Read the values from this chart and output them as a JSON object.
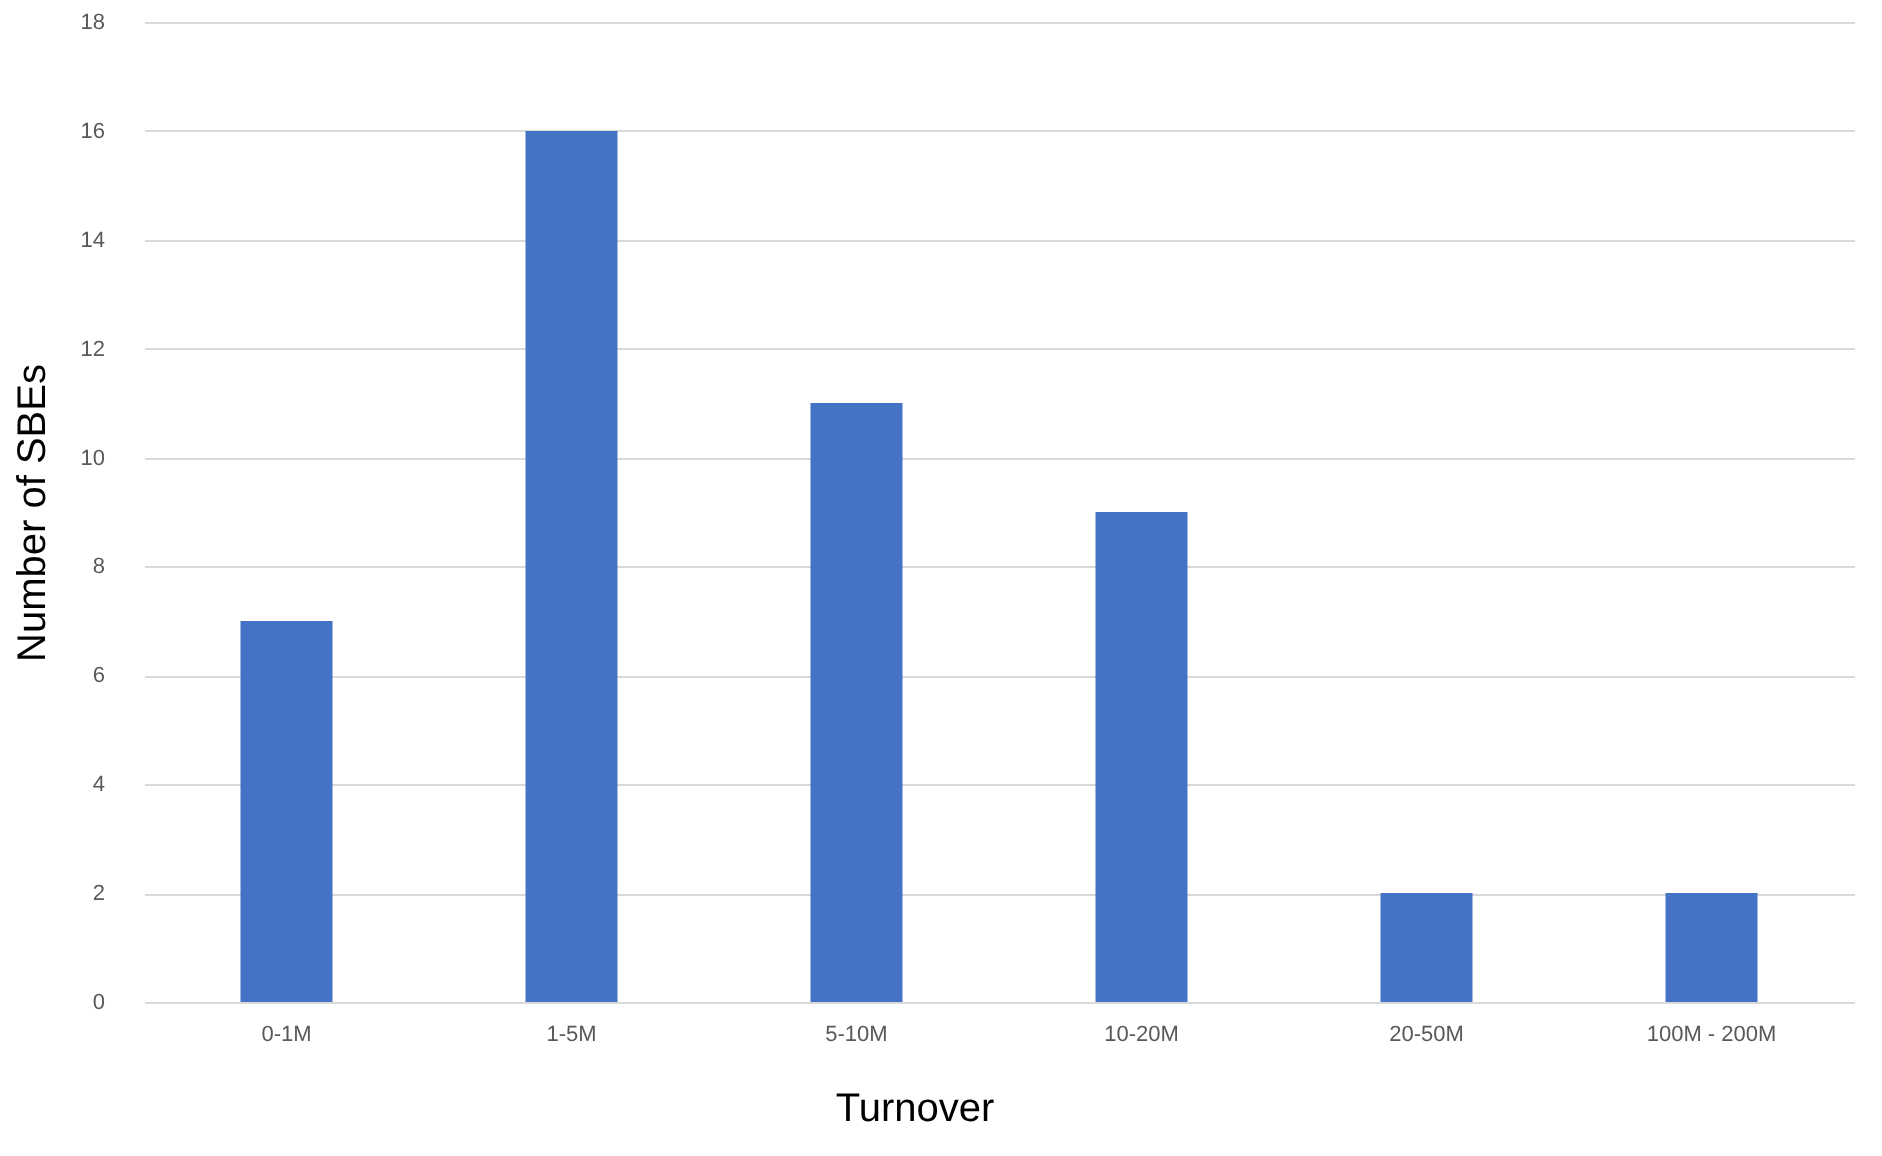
{
  "chart_data": {
    "type": "bar",
    "xlabel": "Turnover",
    "ylabel": "Number of SBEs",
    "categories": [
      "0-1M",
      "1-5M",
      "5-10M",
      "10-20M",
      "20-50M",
      "100M - 200M"
    ],
    "values": [
      7,
      16,
      11,
      9,
      2,
      2
    ],
    "color": "#4472c4",
    "ylim": [
      0,
      18
    ],
    "yticks": [
      0,
      2,
      4,
      6,
      8,
      10,
      12,
      14,
      16,
      18
    ],
    "grid": "y"
  }
}
